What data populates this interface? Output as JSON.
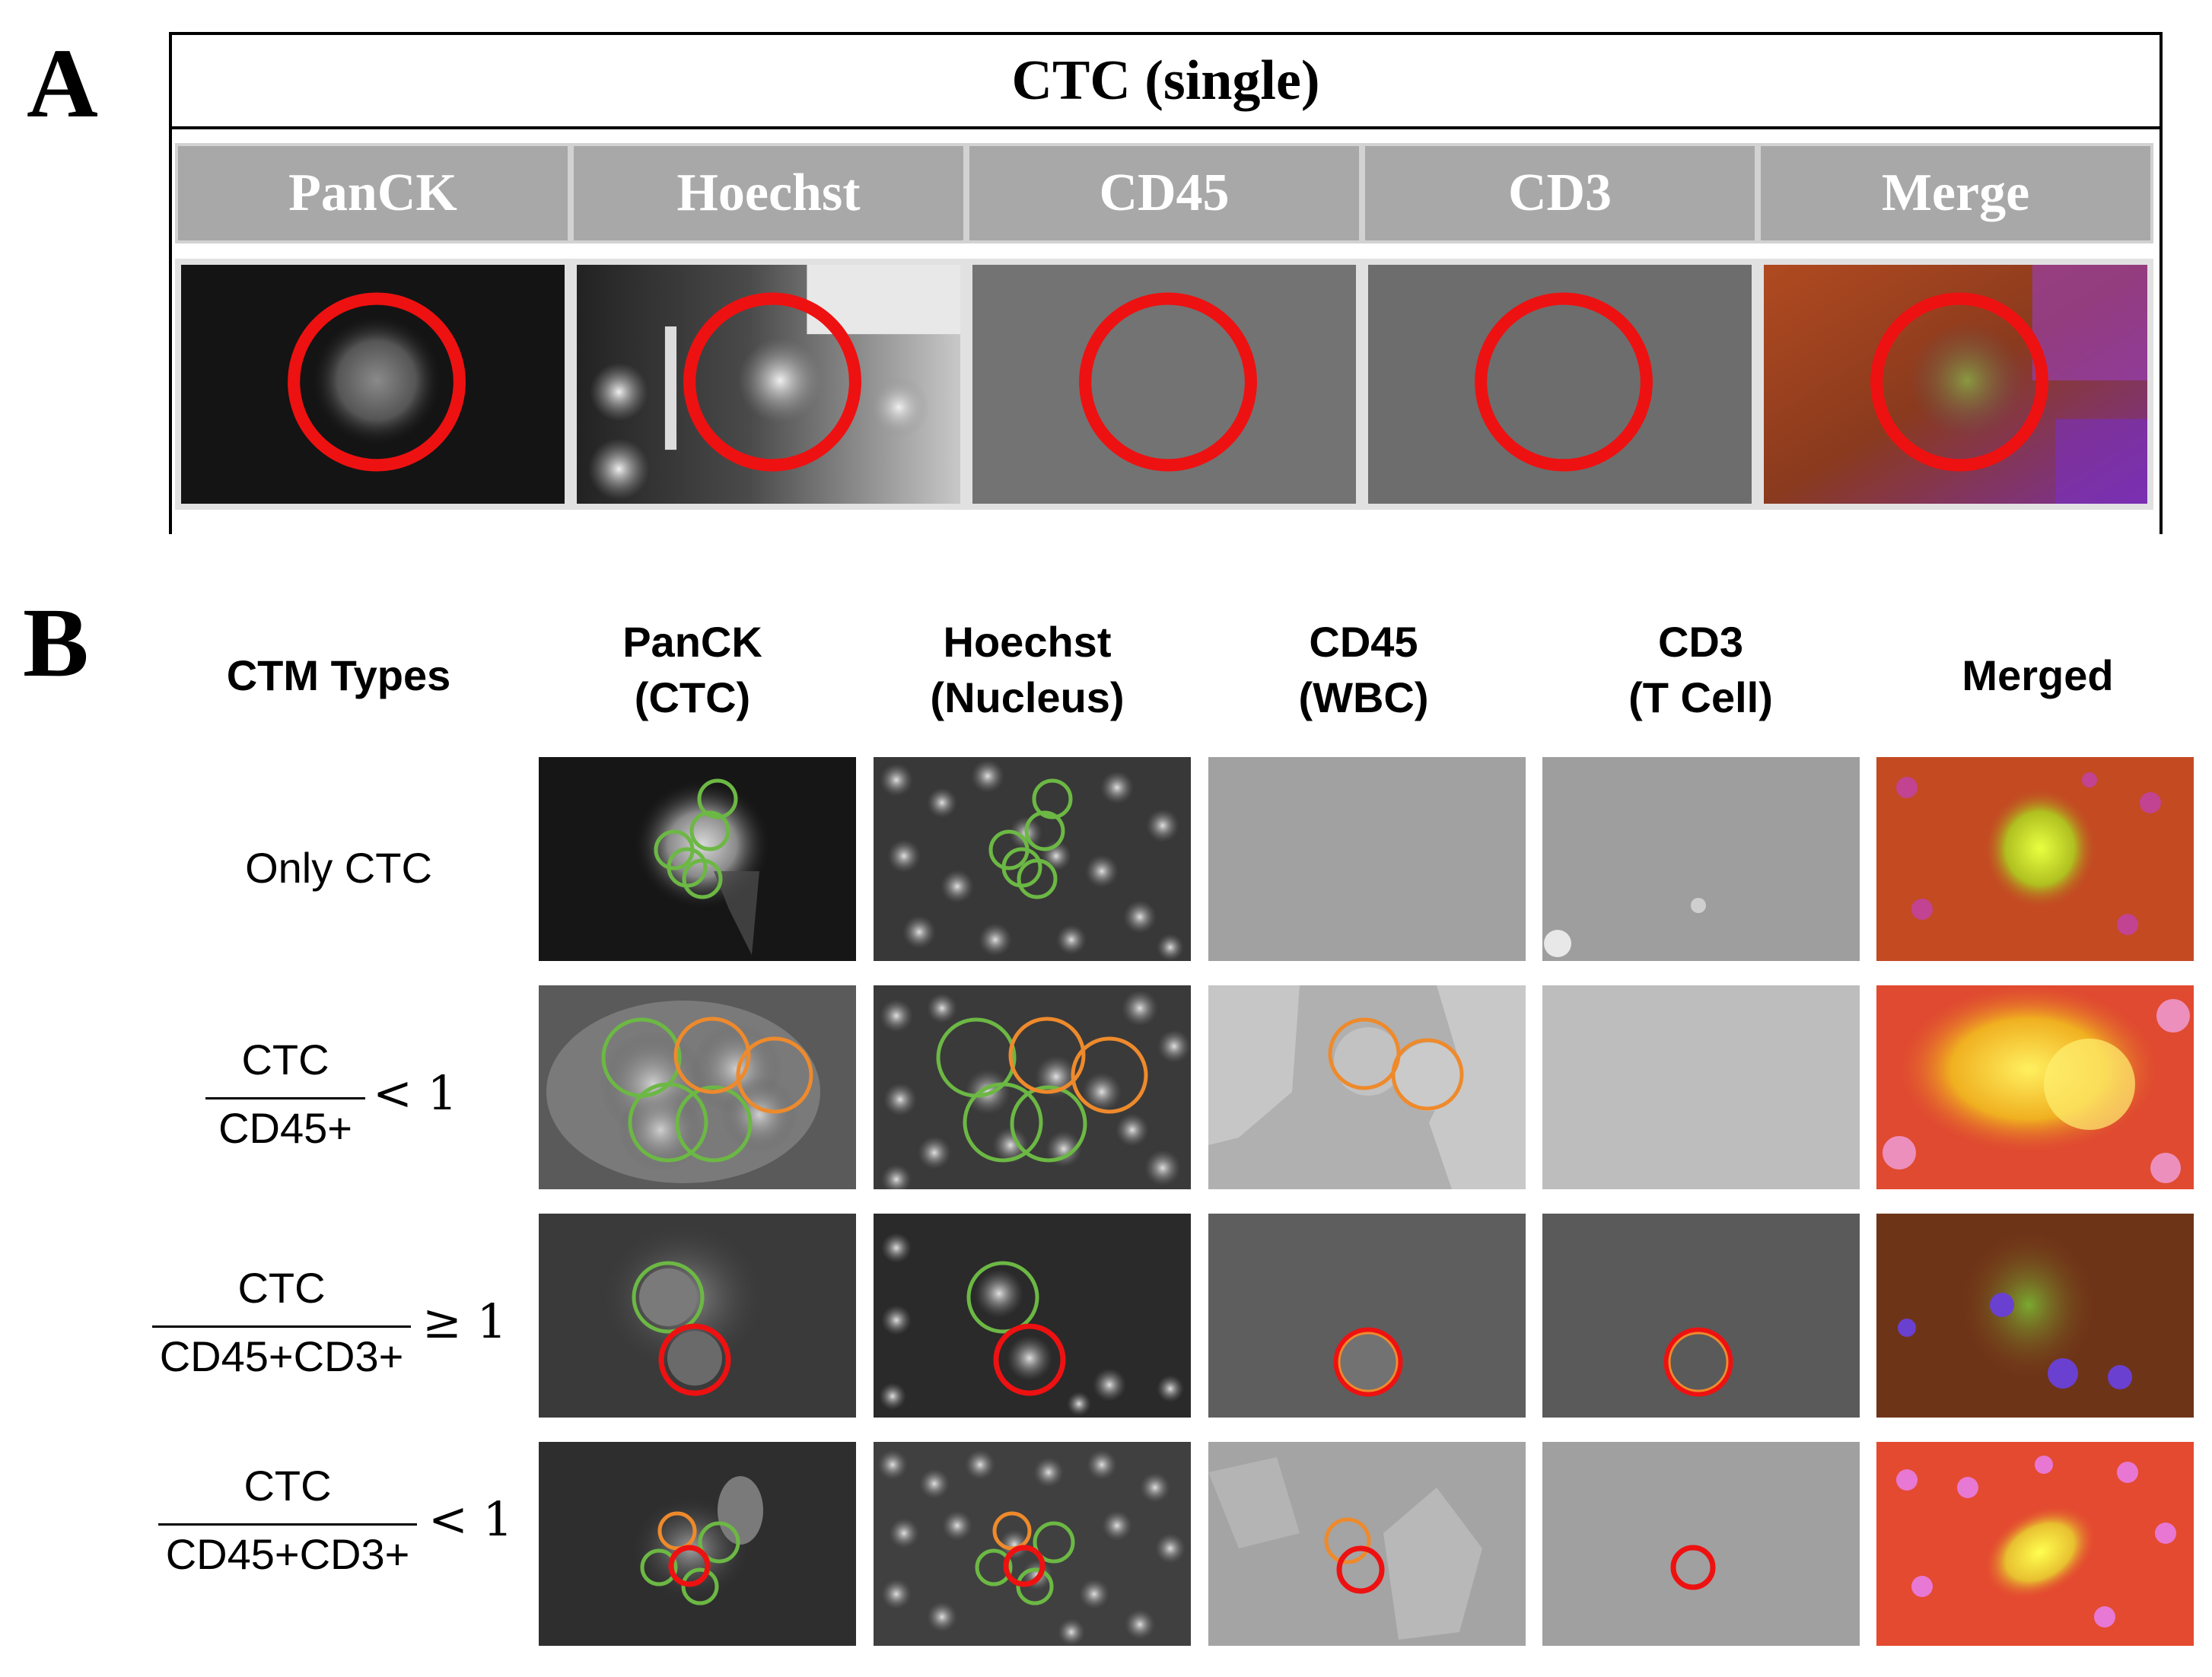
{
  "panel_a": {
    "letter": "A",
    "title": "CTC (single)",
    "channels": [
      "PanCK",
      "Hoechst",
      "CD45",
      "CD3",
      "Merge"
    ]
  },
  "panel_b": {
    "letter": "B",
    "row_header": "CTM Types",
    "columns": [
      {
        "line1": "PanCK",
        "line2": "(CTC)"
      },
      {
        "line1": "Hoechst",
        "line2": "(Nucleus)"
      },
      {
        "line1": "CD45",
        "line2": "(WBC)"
      },
      {
        "line1": "CD3",
        "line2": "(T Cell)"
      },
      {
        "line1": "Merged",
        "line2": ""
      }
    ],
    "rows": [
      {
        "label": "Only CTC"
      },
      {
        "numerator": "CTC",
        "denominator": "CD45+",
        "relation": "< 1"
      },
      {
        "numerator": "CTC",
        "denominator": "CD45+CD3+",
        "relation": "≥ 1"
      },
      {
        "numerator": "CTC",
        "denominator": "CD45+CD3+",
        "relation": "< 1"
      }
    ]
  },
  "colors": {
    "marker_red": "#ee1111",
    "marker_green": "#6cb844",
    "marker_orange": "#ee8a2c",
    "header_gray": "#a8a8a8"
  }
}
